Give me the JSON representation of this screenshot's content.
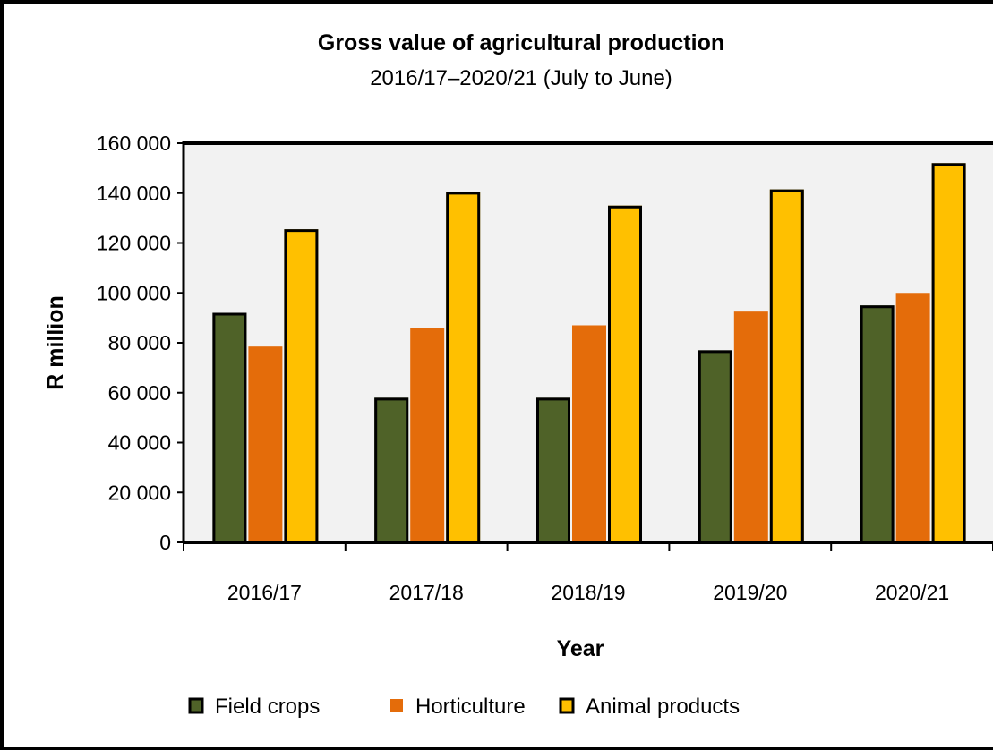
{
  "chart_data": {
    "type": "bar",
    "title": "Gross value of agricultural production",
    "subtitle": "2016/17–2020/21 (July to June)",
    "xlabel": "Year",
    "ylabel": "R million",
    "ylim": [
      0,
      160000
    ],
    "yticks": [
      "0",
      "20 000",
      "40 000",
      "60 000",
      "80 000",
      "100 000",
      "120 000",
      "140 000",
      "160 000"
    ],
    "categories": [
      "2016/17",
      "2017/18",
      "2018/19",
      "2019/20",
      "2020/21"
    ],
    "series": [
      {
        "name": "Field crops",
        "values": [
          92000,
          58000,
          58000,
          77000,
          95000
        ],
        "color": "#4f6228",
        "top_outline": true
      },
      {
        "name": "Horticulture",
        "values": [
          78500,
          86000,
          87000,
          92500,
          100000
        ],
        "color": "#e46c0a",
        "top_outline": false
      },
      {
        "name": "Animal products",
        "values": [
          125500,
          140500,
          135000,
          141500,
          152000
        ],
        "color": "#ffc000",
        "top_outline": true
      }
    ],
    "grid": false,
    "plot_background": "#f2f2f2",
    "legend_position": "bottom"
  }
}
